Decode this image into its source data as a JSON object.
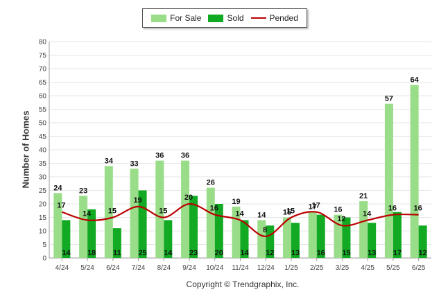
{
  "chart_data": {
    "type": "bar",
    "categories": [
      "4/24",
      "5/24",
      "6/24",
      "7/24",
      "8/24",
      "9/24",
      "10/24",
      "11/24",
      "12/24",
      "1/25",
      "2/25",
      "3/25",
      "4/25",
      "5/25",
      "6/25"
    ],
    "series": [
      {
        "name": "For Sale",
        "kind": "bar",
        "color": "#99dd88",
        "values": [
          24,
          23,
          34,
          33,
          36,
          36,
          26,
          19,
          14,
          15,
          17,
          16,
          21,
          57,
          64
        ]
      },
      {
        "name": "Sold",
        "kind": "bar",
        "color": "#11aa22",
        "values": [
          14,
          18,
          11,
          25,
          14,
          23,
          20,
          14,
          12,
          13,
          16,
          15,
          13,
          17,
          12
        ]
      },
      {
        "name": "Pended",
        "kind": "line",
        "color": "#bb0000",
        "values": [
          17,
          14,
          15,
          19,
          15,
          20,
          16,
          14,
          8,
          15,
          17,
          12,
          14,
          16,
          16
        ]
      }
    ],
    "ylabel": "Number of Homes",
    "ylim": [
      0,
      80
    ],
    "yticks": [
      0,
      5,
      10,
      15,
      20,
      25,
      30,
      35,
      40,
      45,
      50,
      55,
      60,
      65,
      70,
      75,
      80
    ],
    "grid": true,
    "legend": "top-center"
  },
  "footer": {
    "copyright": "Copyright © Trendgraphix, Inc."
  }
}
